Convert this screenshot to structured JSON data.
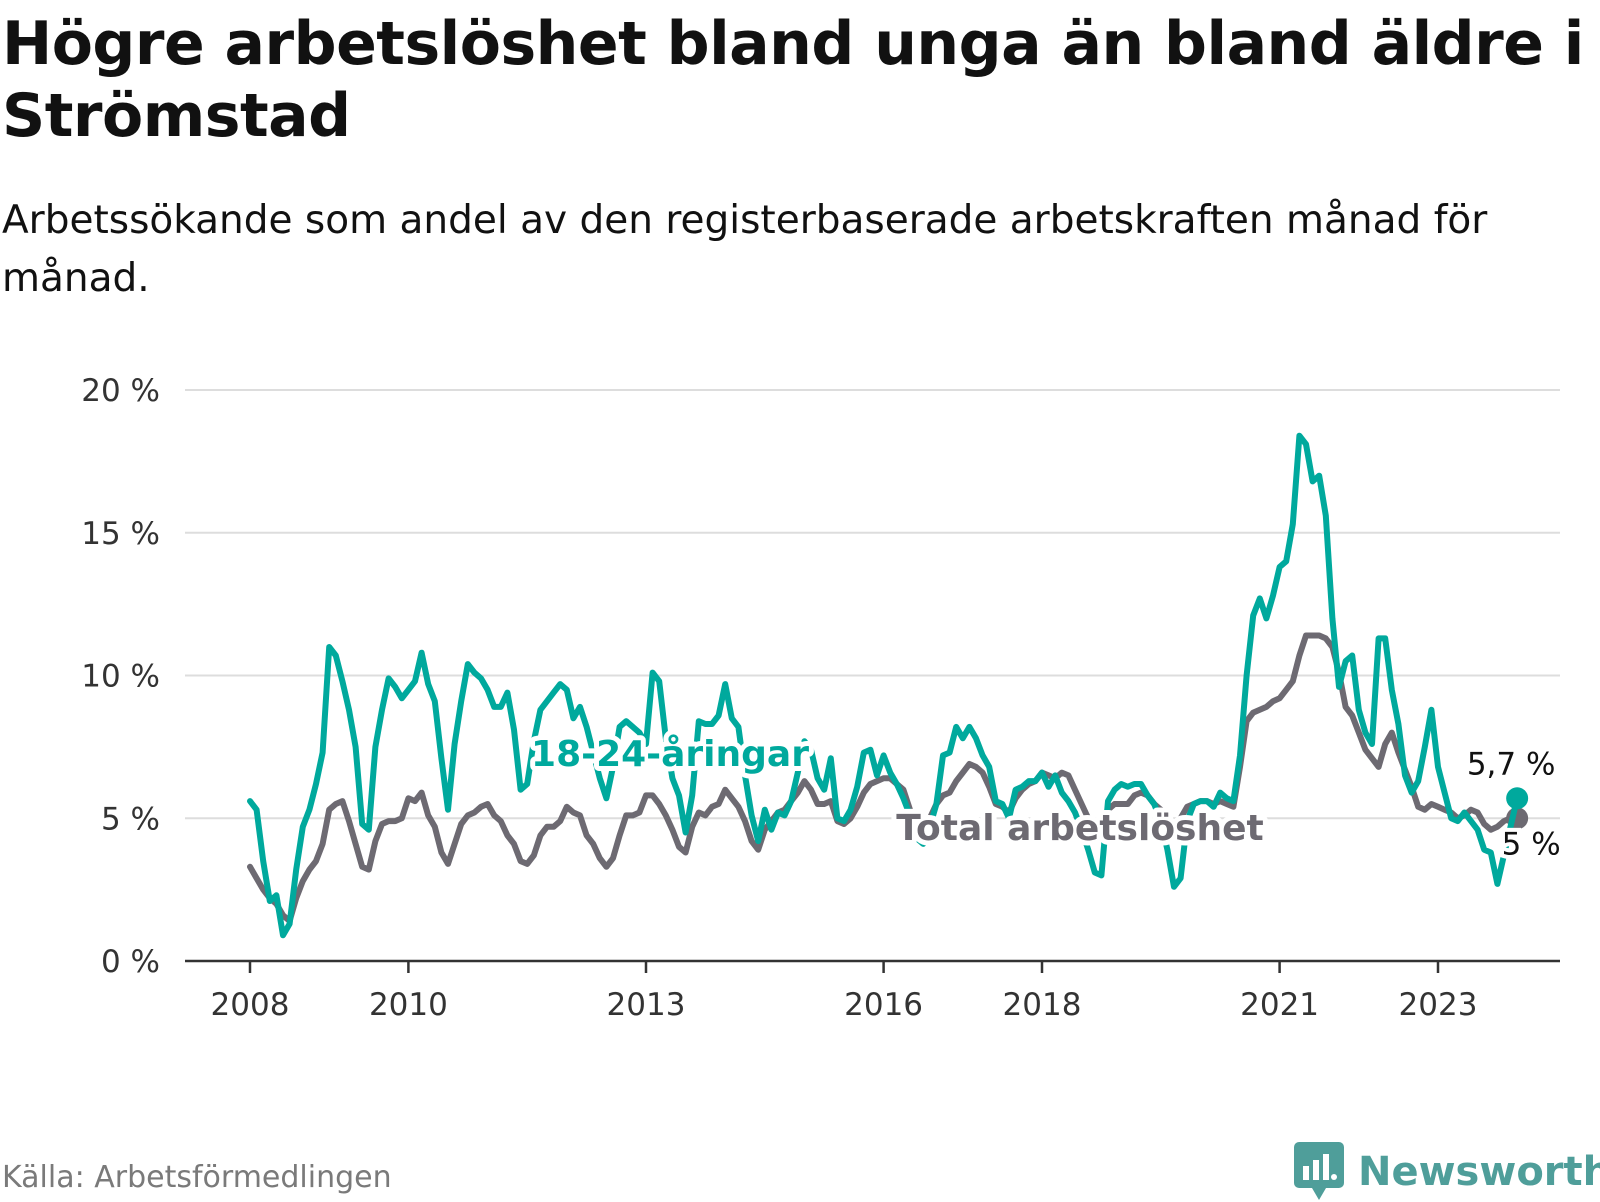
{
  "title": "Högre arbetslöshet bland unga än bland äldre i Strömstad",
  "subtitle": "Arbetssökande som andel av den registerbaserade arbetskraften månad för månad.",
  "source": "Källa: Arbetsförmedlingen",
  "brand": "Newsworthy",
  "colors": {
    "youth": "#00a99d",
    "total": "#6d6a72",
    "grid": "#dddddd",
    "axis": "#333333",
    "text": "#333333"
  },
  "chart_data": {
    "type": "line",
    "x_axis": {
      "min": 2008,
      "max": 2025.2,
      "ticks": [
        2008,
        2010,
        2013,
        2016,
        2018,
        2021,
        2023
      ],
      "tick_labels": [
        "2008",
        "2010",
        "2013",
        "2016",
        "2018",
        "2021",
        "2023"
      ]
    },
    "y_axis": {
      "min": 0,
      "max": 20,
      "ticks": [
        0,
        5,
        10,
        15,
        20
      ],
      "tick_labels": [
        "0 %",
        "5 %",
        "10 %",
        "15 %",
        "20 %"
      ]
    },
    "x_start": 2008.0,
    "x_step": 0.08333,
    "series": [
      {
        "name": "18-24-åringar",
        "label": "18-24-åringar",
        "end_label": "5,7 %",
        "values": [
          5.6,
          5.3,
          3.5,
          2.1,
          2.3,
          0.9,
          1.3,
          3.2,
          4.7,
          5.3,
          6.2,
          7.3,
          11.0,
          10.7,
          9.8,
          8.8,
          7.5,
          4.8,
          4.6,
          7.5,
          8.8,
          9.9,
          9.6,
          9.2,
          9.5,
          9.8,
          10.8,
          9.7,
          9.1,
          7.1,
          5.3,
          7.6,
          9.1,
          10.4,
          10.1,
          9.9,
          9.5,
          8.9,
          8.9,
          9.4,
          8.1,
          6.0,
          6.2,
          7.7,
          8.8,
          9.1,
          9.4,
          9.7,
          9.5,
          8.5,
          8.9,
          8.2,
          7.3,
          6.4,
          5.7,
          6.8,
          8.2,
          8.4,
          8.2,
          8.0,
          7.6,
          10.1,
          9.8,
          7.8,
          6.4,
          5.8,
          4.5,
          5.8,
          8.4,
          8.3,
          8.3,
          8.6,
          9.7,
          8.5,
          8.2,
          6.5,
          5.1,
          4.2,
          5.3,
          4.6,
          5.2,
          5.1,
          5.6,
          6.6,
          7.7,
          7.4,
          6.4,
          6.0,
          7.1,
          5.0,
          4.9,
          5.3,
          6.1,
          7.3,
          7.4,
          6.5,
          7.2,
          6.6,
          6.2,
          5.7,
          5.1,
          4.3,
          4.1,
          4.7,
          5.5,
          7.2,
          7.3,
          8.2,
          7.8,
          8.2,
          7.8,
          7.2,
          6.8,
          5.6,
          5.5,
          5.0,
          6.0,
          6.1,
          6.3,
          6.3,
          6.6,
          6.1,
          6.5,
          5.9,
          5.6,
          5.2,
          4.6,
          3.9,
          3.1,
          3.0,
          5.6,
          6.0,
          6.2,
          6.1,
          6.2,
          6.2,
          5.8,
          5.5,
          4.9,
          3.9,
          2.6,
          2.9,
          4.9,
          5.5,
          5.6,
          5.6,
          5.4,
          5.9,
          5.7,
          5.6,
          7.2,
          10.0,
          12.1,
          12.7,
          12.0,
          12.8,
          13.8,
          14.0,
          15.3,
          18.4,
          18.1,
          16.8,
          17.0,
          15.6,
          12.0,
          9.6,
          10.5,
          10.7,
          8.8,
          8.0,
          7.6,
          11.3,
          11.3,
          9.5,
          8.3,
          6.5,
          5.9,
          6.3,
          7.5,
          8.8,
          6.8,
          5.9,
          5.0,
          4.9,
          5.2,
          4.9,
          4.6,
          3.9,
          3.8,
          2.7,
          3.7,
          4.7,
          5.7
        ]
      },
      {
        "name": "Total arbetslöshet",
        "label": "Total arbetslöshet",
        "end_label": "5 %",
        "values": [
          3.3,
          2.9,
          2.5,
          2.2,
          2.0,
          1.6,
          1.4,
          2.2,
          2.8,
          3.2,
          3.5,
          4.1,
          5.3,
          5.5,
          5.6,
          4.9,
          4.1,
          3.3,
          3.2,
          4.2,
          4.8,
          4.9,
          4.9,
          5.0,
          5.7,
          5.6,
          5.9,
          5.1,
          4.7,
          3.8,
          3.4,
          4.1,
          4.8,
          5.1,
          5.2,
          5.4,
          5.5,
          5.1,
          4.9,
          4.4,
          4.1,
          3.5,
          3.4,
          3.7,
          4.4,
          4.7,
          4.7,
          4.9,
          5.4,
          5.2,
          5.1,
          4.4,
          4.1,
          3.6,
          3.3,
          3.6,
          4.4,
          5.1,
          5.1,
          5.2,
          5.8,
          5.8,
          5.5,
          5.1,
          4.6,
          4.0,
          3.8,
          4.7,
          5.2,
          5.1,
          5.4,
          5.5,
          6.0,
          5.7,
          5.4,
          4.9,
          4.2,
          3.9,
          4.6,
          4.9,
          5.2,
          5.3,
          5.6,
          5.9,
          6.3,
          6.0,
          5.5,
          5.5,
          5.6,
          4.9,
          4.8,
          5.0,
          5.4,
          5.9,
          6.2,
          6.3,
          6.4,
          6.4,
          6.2,
          6.0,
          5.3,
          4.8,
          4.6,
          5.0,
          5.5,
          5.8,
          5.9,
          6.3,
          6.6,
          6.9,
          6.8,
          6.6,
          6.1,
          5.5,
          5.4,
          5.2,
          5.7,
          6.0,
          6.2,
          6.3,
          6.6,
          6.5,
          6.4,
          6.6,
          6.5,
          6.0,
          5.5,
          5.0,
          4.8,
          4.9,
          5.3,
          5.5,
          5.5,
          5.5,
          5.8,
          5.9,
          5.8,
          5.5,
          5.3,
          5.0,
          4.8,
          5.0,
          5.4,
          5.5,
          5.6,
          5.6,
          5.5,
          5.6,
          5.5,
          5.4,
          6.8,
          8.4,
          8.7,
          8.8,
          8.9,
          9.1,
          9.2,
          9.5,
          9.8,
          10.7,
          11.4,
          11.4,
          11.4,
          11.3,
          11.0,
          10.1,
          8.9,
          8.6,
          8.0,
          7.4,
          7.1,
          6.8,
          7.6,
          8.0,
          7.3,
          6.7,
          6.1,
          5.4,
          5.3,
          5.5,
          5.4,
          5.3,
          5.2,
          5.0,
          5.1,
          5.3,
          5.2,
          4.8,
          4.6,
          4.7,
          4.9,
          5.0,
          5.0
        ]
      }
    ]
  }
}
